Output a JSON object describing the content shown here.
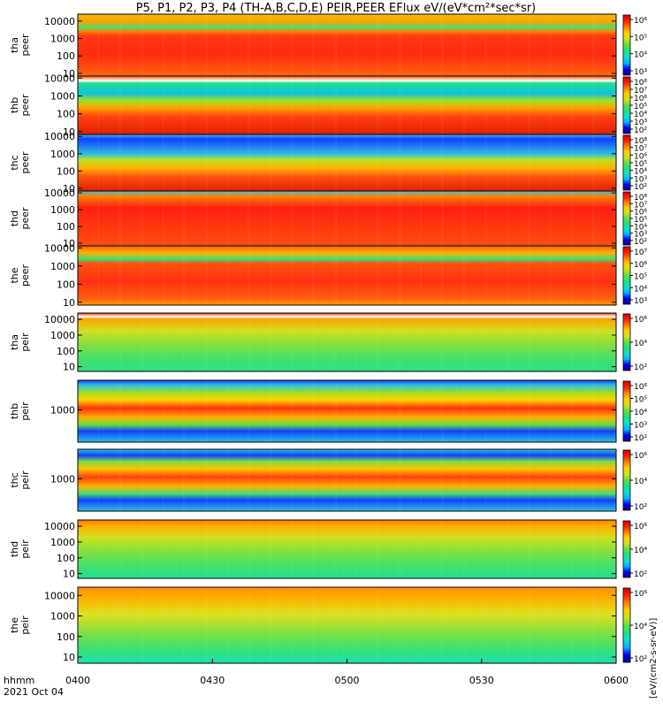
{
  "title": "P5, P1, P2, P3, P4 (TH-A,B,C,D,E) PEIR,PEER EFlux eV/(eV*cm²*sec*sr)",
  "x_axis": {
    "tick_labels": [
      "0400",
      "0430",
      "0500",
      "0530",
      "0600"
    ],
    "corner_label_1": "hhmm",
    "corner_label_2": "2021 Oct 04"
  },
  "colorbar_unit_label": "[eV/(cm2-s-sr-eV)]",
  "chart_data": [
    {
      "type": "heatmap",
      "panel": "tha peer",
      "ylabel": [
        "tha",
        "peer"
      ],
      "y_log": true,
      "yticks": [
        10,
        100,
        1000,
        10000
      ],
      "ylim": [
        7,
        25000
      ],
      "x": [
        "0400",
        "0600"
      ],
      "colorbar_ticks": [
        "10⁶",
        "10⁵",
        "10⁴",
        "10³"
      ]
    },
    {
      "type": "heatmap",
      "panel": "thb peer",
      "ylabel": [
        "thb",
        "peer"
      ],
      "y_log": true,
      "yticks": [
        10,
        100,
        1000,
        10000
      ],
      "ylim": [
        7,
        13000
      ],
      "x": [
        "0400",
        "0600"
      ],
      "colorbar_ticks": [
        "10⁸",
        "10⁷",
        "10⁶",
        "10⁵",
        "10⁴",
        "10³",
        "10²"
      ]
    },
    {
      "type": "heatmap",
      "panel": "thc peer",
      "ylabel": [
        "thc",
        "peer"
      ],
      "y_log": true,
      "yticks": [
        10,
        100,
        1000,
        10000
      ],
      "ylim": [
        7,
        13000
      ],
      "x": [
        "0400",
        "0600"
      ],
      "colorbar_ticks": [
        "10⁸",
        "10⁷",
        "10⁶",
        "10⁵",
        "10⁴",
        "10³",
        "10²"
      ]
    },
    {
      "type": "heatmap",
      "panel": "thd peer",
      "ylabel": [
        "thd",
        "peer"
      ],
      "y_log": true,
      "yticks": [
        10,
        100,
        1000,
        10000
      ],
      "ylim": [
        7,
        13000
      ],
      "x": [
        "0400",
        "0600"
      ],
      "colorbar_ticks": [
        "10⁸",
        "10⁷",
        "10⁶",
        "10⁵",
        "10⁴",
        "10³",
        "10²"
      ]
    },
    {
      "type": "heatmap",
      "panel": "the peer",
      "ylabel": [
        "the",
        "peer"
      ],
      "y_log": true,
      "yticks": [
        10,
        100,
        1000,
        10000
      ],
      "ylim": [
        7,
        13000
      ],
      "x": [
        "0400",
        "0600"
      ],
      "colorbar_ticks": [
        "10⁷",
        "10⁶",
        "10⁵",
        "10⁴",
        "10³"
      ]
    },
    {
      "type": "heatmap",
      "panel": "tha peir",
      "ylabel": [
        "tha",
        "peir"
      ],
      "y_log": true,
      "yticks": [
        10,
        100,
        1000,
        10000
      ],
      "ylim": [
        5,
        25000
      ],
      "x": [
        "0400",
        "0600"
      ],
      "colorbar_ticks": [
        "10⁶",
        "10⁴",
        "10²"
      ]
    },
    {
      "type": "heatmap",
      "panel": "thb peir",
      "ylabel": [
        "thb",
        "peir"
      ],
      "y_log": true,
      "yticks": [
        1000
      ],
      "ylim": [
        300,
        3000
      ],
      "x": [
        "0400",
        "0600"
      ],
      "colorbar_ticks": [
        "10⁶",
        "10⁵",
        "10⁴",
        "10³",
        "10²"
      ]
    },
    {
      "type": "heatmap",
      "panel": "thc peir",
      "ylabel": [
        "thc",
        "peir"
      ],
      "y_log": true,
      "yticks": [
        1000
      ],
      "ylim": [
        300,
        3000
      ],
      "x": [
        "0400",
        "0600"
      ],
      "colorbar_ticks": [
        "10⁶",
        "10⁴",
        "10²"
      ]
    },
    {
      "type": "heatmap",
      "panel": "thd peir",
      "ylabel": [
        "thd",
        "peir"
      ],
      "y_log": true,
      "yticks": [
        10,
        100,
        1000,
        10000
      ],
      "ylim": [
        5,
        25000
      ],
      "x": [
        "0400",
        "0600"
      ],
      "colorbar_ticks": [
        "10⁶",
        "10⁴",
        "10²"
      ]
    },
    {
      "type": "heatmap",
      "panel": "the peir",
      "ylabel": [
        "the",
        "peir"
      ],
      "y_log": true,
      "yticks": [
        10,
        100,
        1000,
        10000
      ],
      "ylim": [
        5,
        25000
      ],
      "x": [
        "0400",
        "0600"
      ],
      "colorbar_ticks": [
        "10⁶",
        "10⁴",
        "10²"
      ]
    }
  ],
  "colors": {
    "scale": [
      "#1a0070",
      "#0000ff",
      "#00b4ff",
      "#10e0d0",
      "#20e080",
      "#60e040",
      "#d0e020",
      "#ffd000",
      "#ff8000",
      "#ff2000",
      "#d00000"
    ],
    "white_gap": "#ffffff",
    "red_line": "#ff0000"
  }
}
